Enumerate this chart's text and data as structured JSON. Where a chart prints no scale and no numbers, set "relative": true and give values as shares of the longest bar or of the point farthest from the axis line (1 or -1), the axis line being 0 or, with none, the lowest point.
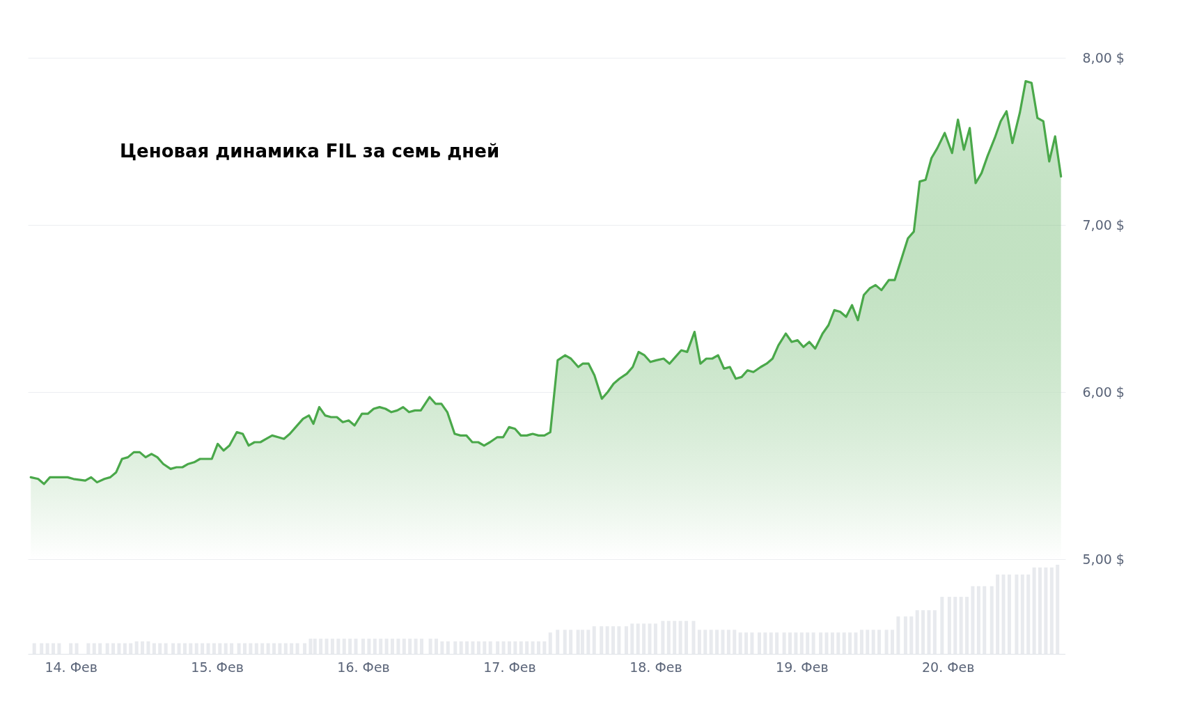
{
  "chart_data": [
    {
      "type": "area",
      "title": "Ценовая динамика FIL за семь дней",
      "series": [
        {
          "color": "#4aa84a",
          "x": [
            13.75,
            13.8,
            13.84,
            13.88,
            13.92,
            14.0,
            14.04,
            14.12,
            14.16,
            14.2,
            14.25,
            14.29,
            14.33,
            14.37,
            14.41,
            14.45,
            14.49,
            14.53,
            14.57,
            14.61,
            14.65,
            14.7,
            14.74,
            14.78,
            14.82,
            14.86,
            14.9,
            14.94,
            14.98,
            15.02,
            15.06,
            15.1,
            15.15,
            15.19,
            15.23,
            15.27,
            15.31,
            15.35,
            15.39,
            15.43,
            15.47,
            15.51,
            15.55,
            15.6,
            15.64,
            15.67,
            15.71,
            15.75,
            15.79,
            15.83,
            15.87,
            15.91,
            15.95,
            16.0,
            16.04,
            16.08,
            16.12,
            16.16,
            16.2,
            16.24,
            16.28,
            16.32,
            16.36,
            16.4,
            16.46,
            16.5,
            16.54,
            16.58,
            16.63,
            16.67,
            16.71,
            16.75,
            16.79,
            16.83,
            16.87,
            16.92,
            16.96,
            17.0,
            17.04,
            17.08,
            17.12,
            17.16,
            17.2,
            17.24,
            17.28,
            17.33,
            17.38,
            17.42,
            17.47,
            17.5,
            17.54,
            17.58,
            17.63,
            17.67,
            17.71,
            17.75,
            17.8,
            17.84,
            17.88,
            17.92,
            17.96,
            18.0,
            18.05,
            18.09,
            18.13,
            18.17,
            18.21,
            18.26,
            18.3,
            18.34,
            18.38,
            18.42,
            18.46,
            18.5,
            18.54,
            18.58,
            18.62,
            18.66,
            18.71,
            18.75,
            18.79,
            18.83,
            18.88,
            18.92,
            18.96,
            19.0,
            19.04,
            19.08,
            19.13,
            19.17,
            19.21,
            19.25,
            19.29,
            19.33,
            19.37,
            19.41,
            19.45,
            19.49,
            19.53,
            19.58,
            19.62,
            19.66,
            19.71,
            19.75,
            19.79,
            19.83,
            19.87,
            19.91,
            19.96,
            20.01,
            20.05,
            20.09,
            20.13,
            20.17,
            20.21,
            20.25,
            20.3,
            20.34,
            20.38,
            20.42,
            20.47,
            20.51,
            20.55,
            20.59,
            20.63,
            20.67,
            20.71,
            20.75
          ],
          "values": [
            5.49,
            5.48,
            5.45,
            5.49,
            5.49,
            5.49,
            5.48,
            5.47,
            5.49,
            5.46,
            5.48,
            5.49,
            5.52,
            5.6,
            5.61,
            5.64,
            5.64,
            5.61,
            5.63,
            5.61,
            5.57,
            5.54,
            5.55,
            5.55,
            5.57,
            5.58,
            5.6,
            5.6,
            5.6,
            5.69,
            5.65,
            5.68,
            5.76,
            5.75,
            5.68,
            5.7,
            5.7,
            5.72,
            5.74,
            5.73,
            5.72,
            5.75,
            5.79,
            5.84,
            5.86,
            5.81,
            5.91,
            5.86,
            5.85,
            5.85,
            5.82,
            5.83,
            5.8,
            5.87,
            5.87,
            5.9,
            5.91,
            5.9,
            5.88,
            5.89,
            5.91,
            5.88,
            5.89,
            5.89,
            5.97,
            5.93,
            5.93,
            5.88,
            5.75,
            5.74,
            5.74,
            5.7,
            5.7,
            5.68,
            5.7,
            5.73,
            5.73,
            5.79,
            5.78,
            5.74,
            5.74,
            5.75,
            5.74,
            5.74,
            5.76,
            6.19,
            6.22,
            6.2,
            6.15,
            6.17,
            6.17,
            6.1,
            5.96,
            6.0,
            6.05,
            6.08,
            6.11,
            6.15,
            6.24,
            6.22,
            6.18,
            6.19,
            6.2,
            6.17,
            6.21,
            6.25,
            6.24,
            6.36,
            6.17,
            6.2,
            6.2,
            6.22,
            6.14,
            6.15,
            6.08,
            6.09,
            6.13,
            6.12,
            6.15,
            6.17,
            6.2,
            6.28,
            6.35,
            6.3,
            6.31,
            6.27,
            6.3,
            6.26,
            6.35,
            6.4,
            6.49,
            6.48,
            6.45,
            6.52,
            6.43,
            6.58,
            6.62,
            6.64,
            6.61,
            6.67,
            6.67,
            6.78,
            6.92,
            6.96,
            7.26,
            7.27,
            7.4,
            7.46,
            7.55,
            7.43,
            7.63,
            7.45,
            7.58,
            7.25,
            7.31,
            7.41,
            7.52,
            7.62,
            7.68,
            7.49,
            7.67,
            7.86,
            7.85,
            7.64,
            7.62,
            7.38,
            7.53,
            7.29
          ]
        }
      ],
      "xlim": [
        13.73,
        20.78
      ],
      "ylim": [
        5,
        8
      ],
      "yticks": [
        {
          "value": 5,
          "label": "5,00 $"
        },
        {
          "value": 6,
          "label": "6,00 $"
        },
        {
          "value": 7,
          "label": "7,00 $"
        },
        {
          "value": 8,
          "label": "8,00 $"
        }
      ],
      "grid": "y",
      "tick_labels": "y"
    },
    {
      "type": "bar",
      "relative": true,
      "series": [
        {
          "color": "#e8eaee",
          "x": [
            13.75,
            13.8,
            13.84,
            13.88,
            13.92,
            14.0,
            14.04,
            14.12,
            14.16,
            14.2,
            14.25,
            14.29,
            14.33,
            14.37,
            14.41,
            14.45,
            14.49,
            14.53,
            14.57,
            14.61,
            14.65,
            14.7,
            14.74,
            14.78,
            14.82,
            14.86,
            14.9,
            14.94,
            14.98,
            15.02,
            15.06,
            15.1,
            15.15,
            15.19,
            15.23,
            15.27,
            15.31,
            15.35,
            15.39,
            15.43,
            15.47,
            15.51,
            15.55,
            15.6,
            15.64,
            15.67,
            15.71,
            15.75,
            15.79,
            15.83,
            15.87,
            15.91,
            15.95,
            16.0,
            16.04,
            16.08,
            16.12,
            16.16,
            16.2,
            16.24,
            16.28,
            16.32,
            16.36,
            16.4,
            16.46,
            16.5,
            16.54,
            16.58,
            16.63,
            16.67,
            16.71,
            16.75,
            16.79,
            16.83,
            16.87,
            16.92,
            16.96,
            17.0,
            17.04,
            17.08,
            17.12,
            17.16,
            17.2,
            17.24,
            17.28,
            17.33,
            17.38,
            17.42,
            17.47,
            17.5,
            17.54,
            17.58,
            17.63,
            17.67,
            17.71,
            17.75,
            17.8,
            17.84,
            17.88,
            17.92,
            17.96,
            18.0,
            18.05,
            18.09,
            18.13,
            18.17,
            18.21,
            18.26,
            18.3,
            18.34,
            18.38,
            18.42,
            18.46,
            18.5,
            18.54,
            18.58,
            18.62,
            18.66,
            18.71,
            18.75,
            18.79,
            18.83,
            18.88,
            18.92,
            18.96,
            19.0,
            19.04,
            19.08,
            19.13,
            19.17,
            19.21,
            19.25,
            19.29,
            19.33,
            19.37,
            19.41,
            19.45,
            19.49,
            19.53,
            19.58,
            19.62,
            19.66,
            19.71,
            19.75,
            19.79,
            19.83,
            19.87,
            19.91,
            19.96,
            20.01,
            20.05,
            20.09,
            20.13,
            20.17,
            20.21,
            20.25,
            20.3,
            20.34,
            20.38,
            20.42,
            20.47,
            20.51,
            20.55,
            20.59,
            20.63,
            20.67,
            20.71,
            20.75
          ],
          "values": [
            0.12,
            0.12,
            0.12,
            0.12,
            0.12,
            0.12,
            0.12,
            0.12,
            0.12,
            0.12,
            0.12,
            0.12,
            0.12,
            0.12,
            0.12,
            0.14,
            0.14,
            0.14,
            0.12,
            0.12,
            0.12,
            0.12,
            0.12,
            0.12,
            0.12,
            0.12,
            0.12,
            0.12,
            0.12,
            0.12,
            0.12,
            0.12,
            0.12,
            0.12,
            0.12,
            0.12,
            0.12,
            0.12,
            0.12,
            0.12,
            0.12,
            0.12,
            0.12,
            0.12,
            0.17,
            0.17,
            0.17,
            0.17,
            0.17,
            0.17,
            0.17,
            0.17,
            0.17,
            0.17,
            0.17,
            0.17,
            0.17,
            0.17,
            0.17,
            0.17,
            0.17,
            0.17,
            0.17,
            0.17,
            0.17,
            0.17,
            0.14,
            0.14,
            0.14,
            0.14,
            0.14,
            0.14,
            0.14,
            0.14,
            0.14,
            0.14,
            0.14,
            0.14,
            0.14,
            0.14,
            0.14,
            0.14,
            0.14,
            0.14,
            0.24,
            0.27,
            0.27,
            0.27,
            0.27,
            0.27,
            0.27,
            0.31,
            0.31,
            0.31,
            0.31,
            0.31,
            0.31,
            0.34,
            0.34,
            0.34,
            0.34,
            0.34,
            0.37,
            0.37,
            0.37,
            0.37,
            0.37,
            0.37,
            0.27,
            0.27,
            0.27,
            0.27,
            0.27,
            0.27,
            0.27,
            0.24,
            0.24,
            0.24,
            0.24,
            0.24,
            0.24,
            0.24,
            0.24,
            0.24,
            0.24,
            0.24,
            0.24,
            0.24,
            0.24,
            0.24,
            0.24,
            0.24,
            0.24,
            0.24,
            0.24,
            0.27,
            0.27,
            0.27,
            0.27,
            0.27,
            0.27,
            0.42,
            0.42,
            0.42,
            0.49,
            0.49,
            0.49,
            0.49,
            0.64,
            0.64,
            0.64,
            0.64,
            0.64,
            0.76,
            0.76,
            0.76,
            0.76,
            0.89,
            0.89,
            0.89,
            0.89,
            0.89,
            0.89,
            0.97,
            0.97,
            0.97,
            0.97,
            1.0
          ]
        }
      ],
      "xlim": [
        13.73,
        20.78
      ],
      "xticks": [
        {
          "value": 14,
          "label": "14. Фев"
        },
        {
          "value": 15,
          "label": "15. Фев"
        },
        {
          "value": 16,
          "label": "16. Фев"
        },
        {
          "value": 17,
          "label": "17. Фев"
        },
        {
          "value": 18,
          "label": "18. Фев"
        },
        {
          "value": 19,
          "label": "19. Фев"
        },
        {
          "value": 20,
          "label": "20. Фев"
        }
      ],
      "tick_labels": "x"
    }
  ]
}
